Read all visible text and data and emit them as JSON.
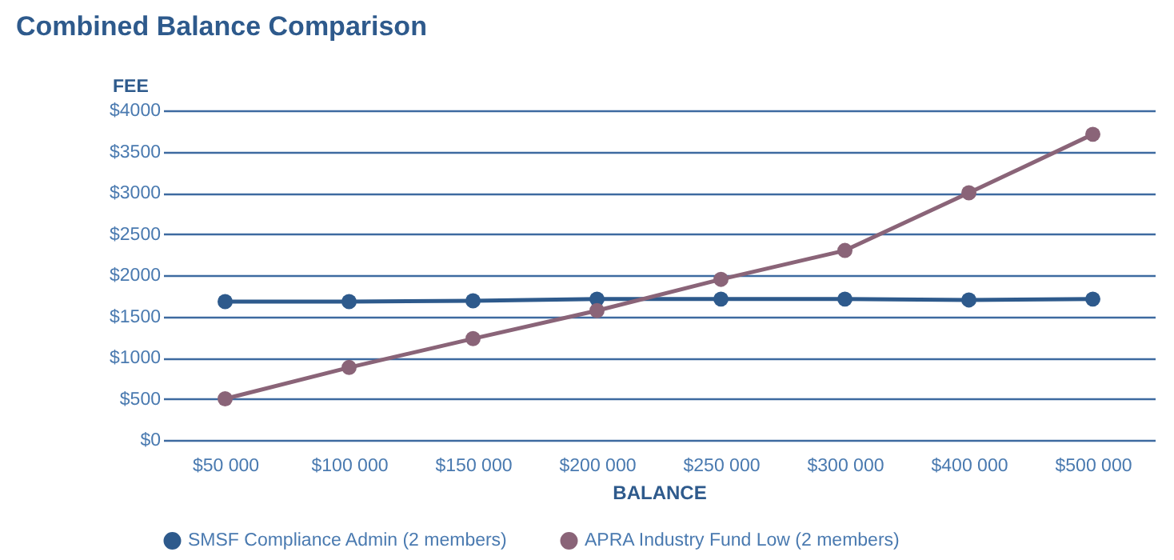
{
  "chart_data": {
    "type": "line",
    "title": "Combined Balance Comparison",
    "xlabel": "BALANCE",
    "ylabel": "FEE",
    "categories": [
      "$50 000",
      "$100 000",
      "$150 000",
      "$200 000",
      "$250 000",
      "$300 000",
      "$400 000",
      "$500 000"
    ],
    "series": [
      {
        "name": "SMSF Compliance Admin (2 members)",
        "color": "#2e5a8c",
        "values": [
          1680,
          1680,
          1690,
          1710,
          1710,
          1710,
          1700,
          1710
        ]
      },
      {
        "name": "APRA Industry Fund Low (2 members)",
        "color": "#8a6478",
        "values": [
          500,
          880,
          1230,
          1570,
          1950,
          2300,
          3000,
          3710
        ]
      }
    ],
    "ylim": [
      0,
      4000
    ],
    "yticks": [
      {
        "value": 0,
        "label": "$0"
      },
      {
        "value": 500,
        "label": "$500"
      },
      {
        "value": 1000,
        "label": "$1000"
      },
      {
        "value": 1500,
        "label": "$1500"
      },
      {
        "value": 2000,
        "label": "$2000"
      },
      {
        "value": 2500,
        "label": "$2500"
      },
      {
        "value": 3000,
        "label": "$3000"
      },
      {
        "value": 3500,
        "label": "$3500"
      },
      {
        "value": 4000,
        "label": "$4000"
      }
    ],
    "grid": "y",
    "legend": "bottom",
    "marker": "circle",
    "line_style": "solid"
  }
}
